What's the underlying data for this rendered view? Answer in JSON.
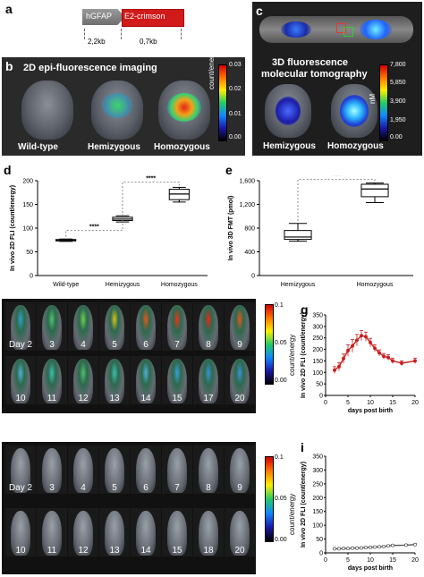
{
  "panels": {
    "a": {
      "label": "a",
      "gfap": "hGFAP",
      "crimson": "E2-crimson",
      "len1": "2,2kb",
      "len2": "0,7kb"
    },
    "b": {
      "label": "b",
      "title": "2D epi-fluorescence imaging",
      "mice": [
        "Wild-type",
        "Hemizygous",
        "Homozygous"
      ],
      "cbar_ticks": [
        "0.03",
        "0.02",
        "0.01",
        "0.00"
      ],
      "cbar_unit": "count/energy"
    },
    "c": {
      "label": "c",
      "title_l1": "3D fluorescence",
      "title_l2": "molecular tomography",
      "mice": [
        "Hemizygous",
        "Homozygous"
      ],
      "cbar_ticks": [
        "7,800",
        "5,850",
        "3,900",
        "1,950",
        "0.00"
      ],
      "cbar_unit": "nM"
    },
    "d": {
      "label": "d"
    },
    "e": {
      "label": "e"
    },
    "f": {
      "label": "f",
      "days_row1": [
        "Day 2",
        "3",
        "4",
        "5",
        "6",
        "7",
        "8",
        "9"
      ],
      "days_row2": [
        "10",
        "11",
        "12",
        "13",
        "14",
        "15",
        "17",
        "20"
      ],
      "cbar_ticks": [
        "0.1",
        "0.05",
        "0.00"
      ],
      "cbar_unit": "count/energy"
    },
    "g": {
      "label": "g"
    },
    "h": {
      "label": "h",
      "days_row1": [
        "Day 2",
        "3",
        "4",
        "5",
        "6",
        "7",
        "8",
        "9"
      ],
      "days_row2": [
        "10",
        "11",
        "12",
        "13",
        "14",
        "15",
        "18",
        "20"
      ],
      "cbar_ticks": [
        "0.1",
        "0.05",
        "0.00"
      ],
      "cbar_unit": "count/energy"
    },
    "i": {
      "label": "i"
    }
  },
  "chart_data": [
    {
      "id": "d",
      "type": "box",
      "categories": [
        "Wild-type",
        "Hemizygous",
        "Homozygous"
      ],
      "ylabel": "In vivo 2D FLI (count/energy)",
      "ylim": [
        0,
        200
      ],
      "yticks": [
        0,
        50,
        100,
        150,
        200
      ],
      "boxes": [
        {
          "min": 72,
          "q1": 73,
          "median": 74,
          "q3": 76,
          "max": 77
        },
        {
          "min": 113,
          "q1": 116,
          "median": 119,
          "q3": 123,
          "max": 126
        },
        {
          "min": 155,
          "q1": 160,
          "median": 172,
          "q3": 182,
          "max": 186
        }
      ],
      "sig": [
        "****",
        "****"
      ]
    },
    {
      "id": "e",
      "type": "box",
      "categories": [
        "Hemizygous",
        "Homozygous"
      ],
      "ylabel": "In vivo 3D FMT (pmol)",
      "ylim": [
        0,
        1600
      ],
      "yticks": [
        0,
        400,
        800,
        1200,
        1600
      ],
      "yticklabels": [
        "0",
        "400",
        "800",
        "1,200",
        "1,600"
      ],
      "boxes": [
        {
          "min": 580,
          "q1": 610,
          "median": 650,
          "q3": 760,
          "max": 880
        },
        {
          "min": 1230,
          "q1": 1330,
          "median": 1460,
          "q3": 1540,
          "max": 1560
        }
      ],
      "sig": [
        "****"
      ]
    },
    {
      "id": "g",
      "type": "line",
      "xlabel": "days post birth",
      "ylabel": "In vivo 2D FLI (count/energy)",
      "xlim": [
        0,
        20
      ],
      "ylim": [
        0,
        350
      ],
      "xticks": [
        0,
        5,
        10,
        15,
        20
      ],
      "yticks": [
        0,
        50,
        100,
        150,
        200,
        250,
        300,
        350
      ],
      "x": [
        2,
        3,
        4,
        5,
        6,
        7,
        8,
        9,
        10,
        11,
        12,
        13,
        14,
        15,
        17,
        20
      ],
      "y": [
        110,
        125,
        160,
        195,
        215,
        240,
        260,
        255,
        230,
        205,
        185,
        170,
        165,
        150,
        140,
        150
      ],
      "err": [
        15,
        18,
        20,
        25,
        28,
        25,
        22,
        20,
        18,
        15,
        13,
        12,
        12,
        12,
        10,
        12
      ]
    },
    {
      "id": "i",
      "type": "line",
      "xlabel": "days post birth",
      "ylabel": "In vivo 2D FLI (count/energy)",
      "xlim": [
        0,
        20
      ],
      "ylim": [
        0,
        350
      ],
      "xticks": [
        0,
        5,
        10,
        15,
        20
      ],
      "yticks": [
        0,
        50,
        100,
        150,
        200,
        250,
        300,
        350
      ],
      "x": [
        2,
        3,
        4,
        5,
        6,
        7,
        8,
        9,
        10,
        11,
        12,
        13,
        14,
        15,
        18,
        20
      ],
      "y": [
        15,
        15,
        16,
        16,
        17,
        17,
        18,
        19,
        20,
        21,
        22,
        23,
        25,
        27,
        28,
        30
      ],
      "err": [
        2,
        2,
        2,
        2,
        2,
        2,
        2,
        2,
        2,
        2,
        2,
        2,
        3,
        3,
        3,
        3
      ]
    }
  ]
}
